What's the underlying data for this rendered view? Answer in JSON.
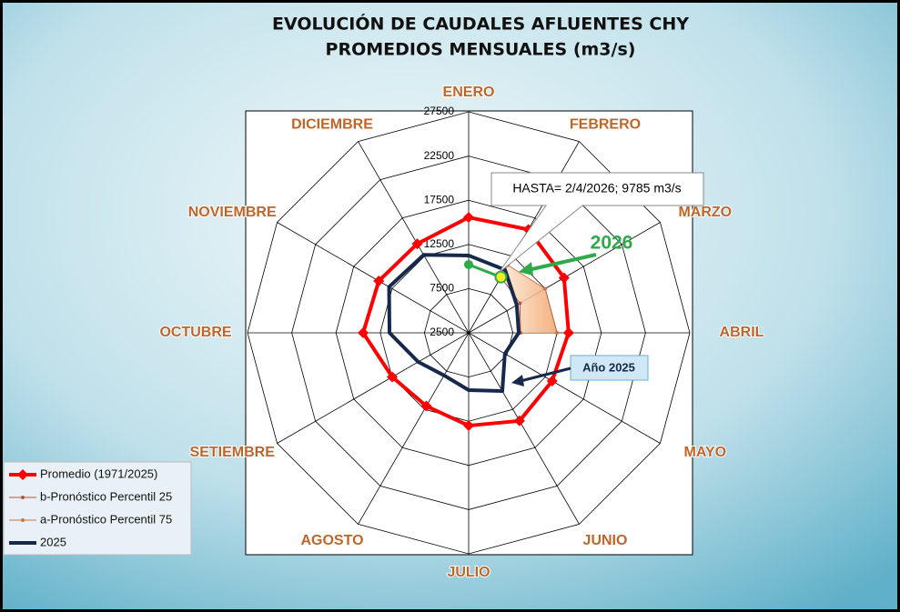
{
  "chart_data": {
    "type": "radar",
    "title": "EVOLUCIÓN DE CAUDALES AFLUENTES CHY",
    "subtitle": "PROMEDIOS MENSUALES (m3/s)",
    "categories": [
      "ENERO",
      "FEBRERO",
      "MARZO",
      "ABRIL",
      "MAYO",
      "JUNIO",
      "JULIO",
      "AGOSTO",
      "SETIEMBRE",
      "OCTUBRE",
      "NOVIEMBRE",
      "DICIEMBRE"
    ],
    "ylim": [
      2500,
      27500
    ],
    "yticks": [
      2500,
      7500,
      12500,
      17500,
      22500,
      27500
    ],
    "grid": true,
    "legend": "lower-left",
    "series": [
      {
        "name": "Promedio (1971/2025)",
        "color": "#ff0000",
        "marker": "diamond",
        "width": 4,
        "values": [
          15560,
          16000,
          14950,
          13800,
          13400,
          14000,
          13000,
          12070,
          12480,
          14430,
          14230,
          14130
        ]
      },
      {
        "name": "b-Pronóstico Percentil 25",
        "color": "#b5533c",
        "marker": "dot",
        "width": 1,
        "values": [
          null,
          9785,
          9190,
          8360,
          null,
          null,
          null,
          null,
          null,
          null,
          null,
          null
        ]
      },
      {
        "name": "a-Pronóstico Percentil 75",
        "color": "#c8734a",
        "marker": "dot",
        "width": 1,
        "values": [
          null,
          11350,
          12480,
          12480,
          null,
          null,
          null,
          null,
          null,
          null,
          null,
          null
        ]
      },
      {
        "name": "2025",
        "color": "#17294a",
        "marker": "none",
        "width": 4,
        "values": [
          11250,
          10730,
          8780,
          8160,
          7230,
          10110,
          8980,
          8060,
          9080,
          11450,
          12890,
          12680
        ]
      },
      {
        "name": "2026",
        "color": "#2eaa4a",
        "marker": "circle",
        "width": 3,
        "in_legend": false,
        "values": [
          10220,
          9785,
          null,
          null,
          null,
          null,
          null,
          null,
          null,
          null,
          null,
          null
        ]
      }
    ],
    "band_fill": "#f6c8a0",
    "annotations": [
      "HASTA= 2/4/2026; 9785 m3/s",
      "2026",
      "Año 2025"
    ]
  }
}
